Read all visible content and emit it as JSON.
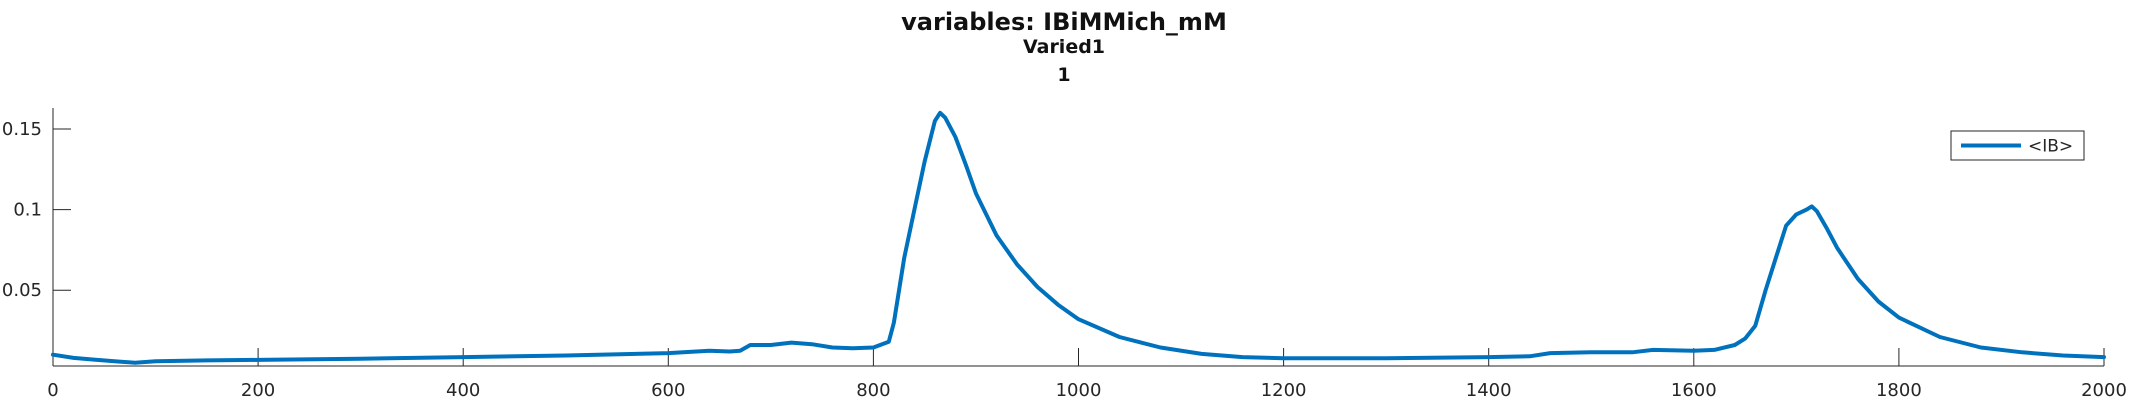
{
  "chart_data": {
    "type": "line",
    "title": "variables: IBiMMich_mM",
    "subtitle": "Varied1",
    "subtitle2": "1",
    "xlabel": "",
    "ylabel": "",
    "xlim": [
      0,
      2000
    ],
    "ylim": [
      0.003,
      0.163
    ],
    "xticks": [
      {
        "value": 0,
        "label": "0"
      },
      {
        "value": 200,
        "label": "200"
      },
      {
        "value": 400,
        "label": "400"
      },
      {
        "value": 600,
        "label": "600"
      },
      {
        "value": 800,
        "label": "800"
      },
      {
        "value": 1000,
        "label": "1000"
      },
      {
        "value": 1200,
        "label": "1200"
      },
      {
        "value": 1400,
        "label": "1400"
      },
      {
        "value": 1600,
        "label": "1600"
      },
      {
        "value": 1800,
        "label": "1800"
      },
      {
        "value": 2000,
        "label": "2000"
      }
    ],
    "yticks": [
      {
        "value": 0.05,
        "label": "0.05"
      },
      {
        "value": 0.1,
        "label": "0.1"
      },
      {
        "value": 0.15,
        "label": "0.15"
      }
    ],
    "grid": false,
    "legend_position": "top-right",
    "colors": {
      "line": "#0072bd",
      "axis": "#262626"
    },
    "series": [
      {
        "name": "<IB>",
        "x": [
          0,
          20,
          40,
          60,
          80,
          100,
          150,
          200,
          300,
          400,
          500,
          600,
          640,
          660,
          670,
          680,
          700,
          720,
          740,
          760,
          780,
          800,
          815,
          820,
          830,
          840,
          850,
          860,
          865,
          870,
          880,
          890,
          900,
          920,
          940,
          960,
          980,
          1000,
          1040,
          1080,
          1120,
          1160,
          1200,
          1300,
          1400,
          1440,
          1460,
          1500,
          1540,
          1560,
          1600,
          1620,
          1640,
          1650,
          1660,
          1670,
          1680,
          1690,
          1700,
          1710,
          1715,
          1720,
          1730,
          1740,
          1760,
          1780,
          1800,
          1840,
          1880,
          1920,
          1960,
          2000
        ],
        "values": [
          0.01,
          0.008,
          0.007,
          0.006,
          0.005,
          0.006,
          0.0065,
          0.0068,
          0.0075,
          0.0085,
          0.0095,
          0.011,
          0.0125,
          0.012,
          0.0125,
          0.016,
          0.016,
          0.0175,
          0.0165,
          0.0145,
          0.014,
          0.0145,
          0.018,
          0.03,
          0.07,
          0.1,
          0.13,
          0.155,
          0.16,
          0.157,
          0.145,
          0.128,
          0.11,
          0.084,
          0.066,
          0.052,
          0.041,
          0.032,
          0.021,
          0.0145,
          0.0105,
          0.0085,
          0.0078,
          0.0078,
          0.0085,
          0.009,
          0.011,
          0.0115,
          0.0115,
          0.013,
          0.0125,
          0.013,
          0.016,
          0.02,
          0.028,
          0.05,
          0.07,
          0.09,
          0.097,
          0.1,
          0.102,
          0.099,
          0.088,
          0.076,
          0.057,
          0.043,
          0.033,
          0.021,
          0.0145,
          0.0115,
          0.0095,
          0.0085
        ]
      }
    ]
  }
}
